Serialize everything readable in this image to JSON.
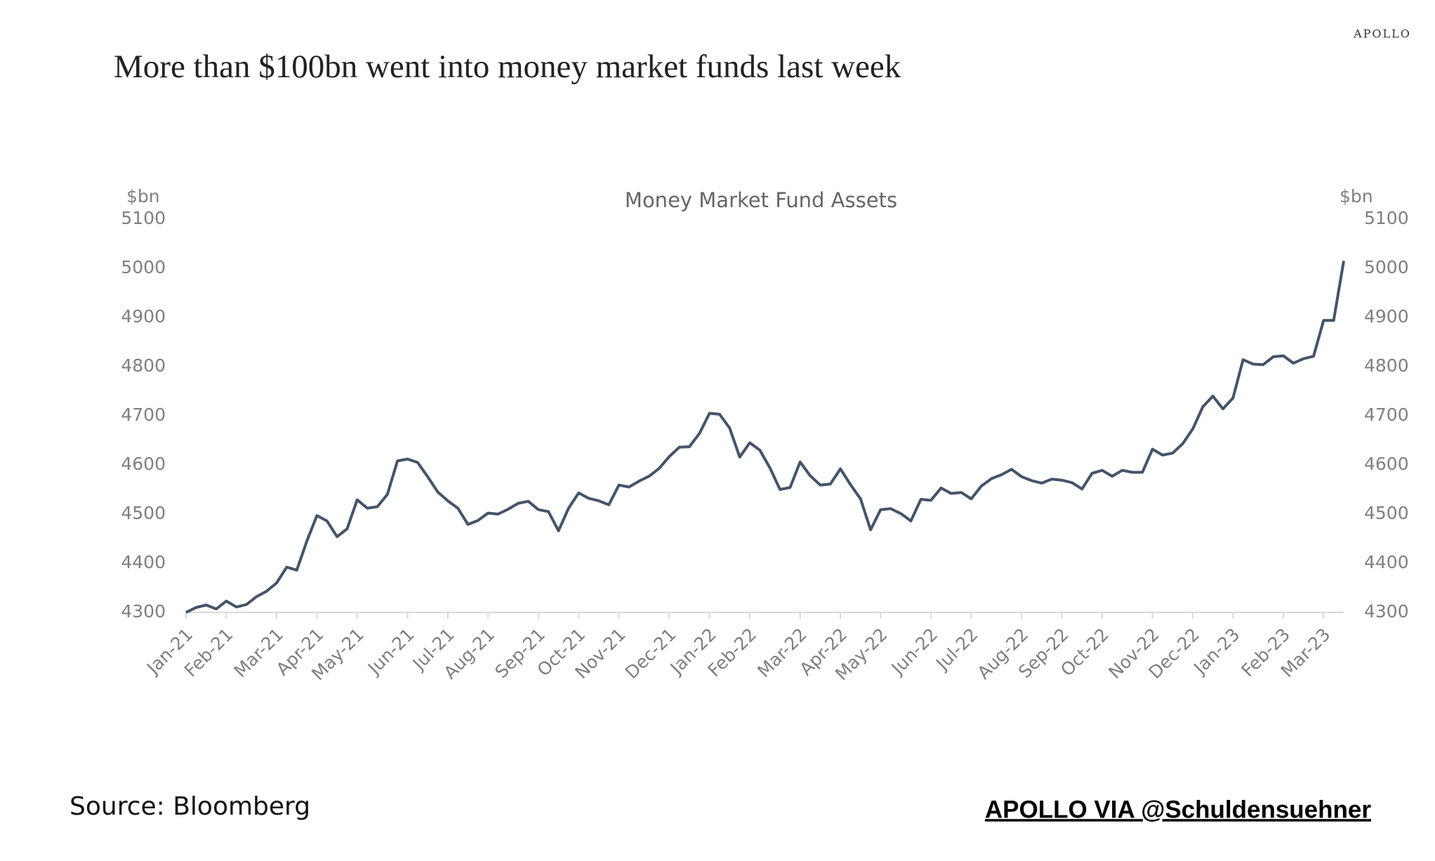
{
  "brand": "APOLLO",
  "chart_data": {
    "type": "line",
    "title": "More than $100bn went into money market funds last week",
    "subtitle": "Money Market Fund Assets",
    "y_label": "$bn",
    "source": "Source: Bloomberg",
    "credit": "APOLLO VIA @Schuldensuehner",
    "categories": [
      "Jan-21",
      null,
      null,
      null,
      "Feb-21",
      null,
      null,
      null,
      null,
      "Mar-21",
      null,
      null,
      null,
      "Apr-21",
      null,
      null,
      null,
      "May-21",
      null,
      null,
      null,
      null,
      "Jun-21",
      null,
      null,
      null,
      "Jul-21",
      null,
      null,
      null,
      "Aug-21",
      null,
      null,
      null,
      null,
      "Sep-21",
      null,
      null,
      null,
      "Oct-21",
      null,
      null,
      null,
      "Nov-21",
      null,
      null,
      null,
      null,
      "Dec-21",
      null,
      null,
      null,
      "Jan-22",
      null,
      null,
      null,
      "Feb-22",
      null,
      null,
      null,
      null,
      "Mar-22",
      null,
      null,
      null,
      "Apr-22",
      null,
      null,
      null,
      "May-22",
      null,
      null,
      null,
      null,
      "Jun-22",
      null,
      null,
      null,
      "Jul-22",
      null,
      null,
      null,
      null,
      "Aug-22",
      null,
      null,
      null,
      "Sep-22",
      null,
      null,
      null,
      "Oct-22",
      null,
      null,
      null,
      null,
      "Nov-22",
      null,
      null,
      null,
      "Dec-22",
      null,
      null,
      null,
      "Jan-23",
      null,
      null,
      null,
      null,
      "Feb-23",
      null,
      null,
      null,
      "Mar-23",
      null,
      null
    ],
    "series": [
      {
        "name": "Money Market Fund Assets",
        "color": "#44546a",
        "values": [
          4300,
          4310,
          4315,
          4307,
          4323,
          4311,
          4316,
          4332,
          4343,
          4360,
          4392,
          4386,
          4445,
          4497,
          4486,
          4454,
          4470,
          4529,
          4512,
          4515,
          4540,
          4608,
          4612,
          4605,
          4576,
          4545,
          4527,
          4512,
          4479,
          4487,
          4502,
          4500,
          4510,
          4522,
          4526,
          4509,
          4505,
          4466,
          4512,
          4543,
          4532,
          4527,
          4519,
          4559,
          4555,
          4567,
          4577,
          4593,
          4617,
          4636,
          4637,
          4664,
          4705,
          4703,
          4675,
          4616,
          4645,
          4630,
          4594,
          4550,
          4554,
          4606,
          4578,
          4559,
          4561,
          4592,
          4560,
          4531,
          4468,
          4509,
          4511,
          4501,
          4486,
          4530,
          4528,
          4553,
          4542,
          4544,
          4531,
          4557,
          4572,
          4580,
          4591,
          4576,
          4568,
          4563,
          4571,
          4569,
          4564,
          4551,
          4583,
          4589,
          4577,
          4589,
          4585,
          4585,
          4632,
          4620,
          4624,
          4643,
          4673,
          4718,
          4740,
          4714,
          4736,
          4814,
          4805,
          4804,
          4820,
          4822,
          4807,
          4816,
          4821,
          4894,
          4894,
          5015
        ]
      }
    ],
    "ylim": [
      4300,
      5100
    ],
    "yticks": [
      4300,
      4400,
      4500,
      4600,
      4700,
      4800,
      4900,
      5000,
      5100
    ],
    "grid": false
  }
}
